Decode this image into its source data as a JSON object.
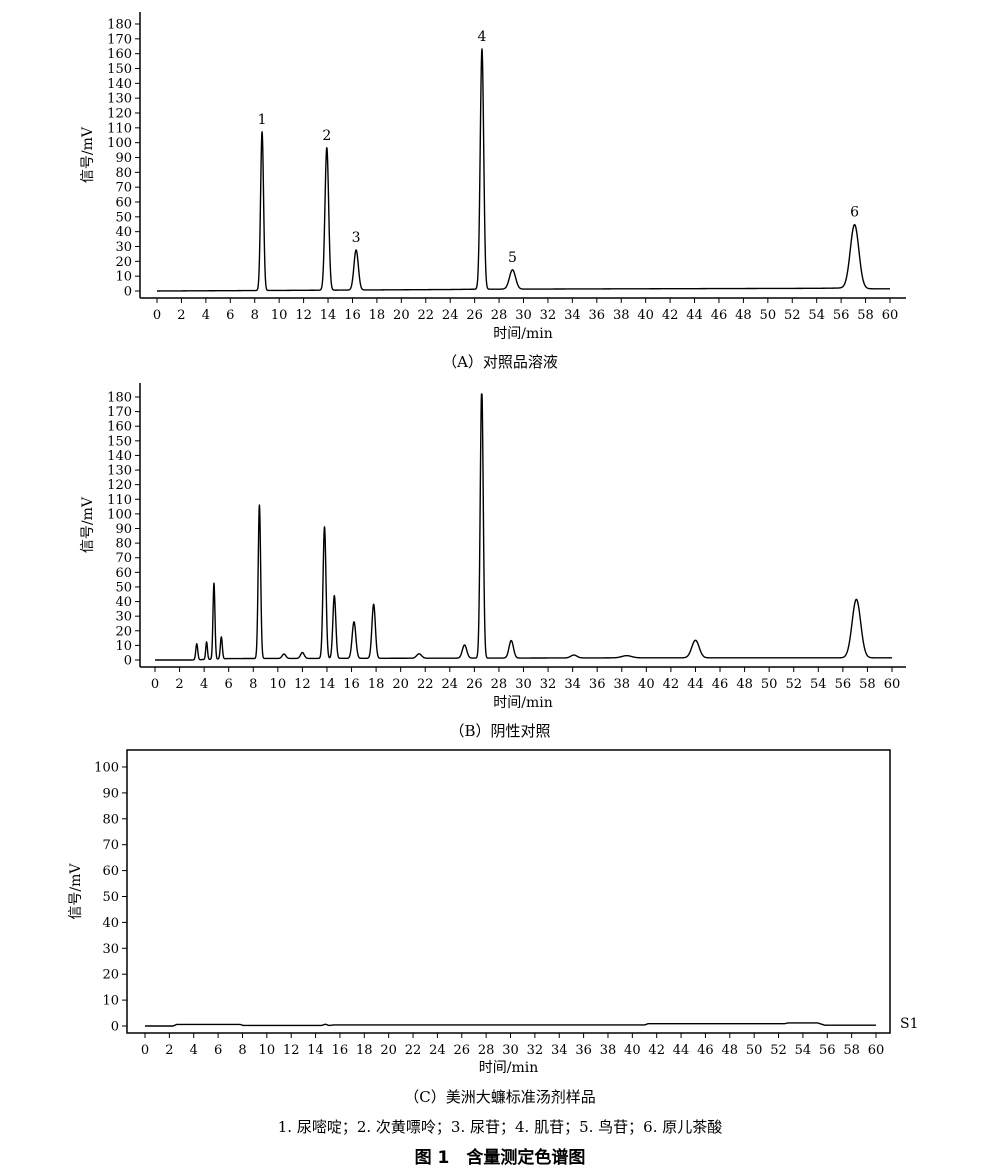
{
  "figure": {
    "legend_text": "1. 尿嘧啶；2. 次黄嘌呤；3. 尿苷；4. 肌苷；5. 鸟苷；6. 原儿茶酸",
    "title": "图 1　含量测定色谱图"
  },
  "chart_data": [
    {
      "type": "line",
      "caption": "（A）对照品溶液",
      "xlabel": "时间/min",
      "ylabel": "信号/mV",
      "xlim": [
        0,
        60
      ],
      "ylim": [
        0,
        180
      ],
      "x_ticks": [
        0,
        2,
        4,
        6,
        8,
        10,
        12,
        14,
        16,
        18,
        20,
        22,
        24,
        26,
        28,
        30,
        32,
        34,
        36,
        38,
        40,
        42,
        44,
        46,
        48,
        50,
        52,
        54,
        56,
        58,
        60
      ],
      "y_ticks": [
        0,
        10,
        20,
        30,
        40,
        50,
        60,
        70,
        80,
        90,
        100,
        110,
        120,
        130,
        140,
        150,
        160,
        170,
        180
      ],
      "grid": false,
      "baseline": [
        [
          0,
          0
        ],
        [
          8,
          0.3
        ],
        [
          24,
          1
        ],
        [
          26,
          1.2
        ],
        [
          40,
          1.5
        ],
        [
          54,
          1.8
        ],
        [
          56,
          2
        ],
        [
          58,
          1.5
        ],
        [
          60,
          1.5
        ]
      ],
      "peaks": [
        {
          "label": "1",
          "x": 8.6,
          "height": 107,
          "width": 0.12
        },
        {
          "label": "2",
          "x": 13.9,
          "height": 96,
          "width": 0.15
        },
        {
          "label": "3",
          "x": 16.3,
          "height": 27,
          "width": 0.18
        },
        {
          "label": "4",
          "x": 26.6,
          "height": 162,
          "width": 0.14
        },
        {
          "label": "5",
          "x": 29.1,
          "height": 13,
          "width": 0.25
        },
        {
          "label": "6",
          "x": 57.1,
          "height": 43,
          "width": 0.35
        }
      ]
    },
    {
      "type": "line",
      "caption": "（B）阴性对照",
      "xlabel": "时间/min",
      "ylabel": "信号/mV",
      "xlim": [
        0,
        60
      ],
      "ylim": [
        0,
        180
      ],
      "x_ticks": [
        0,
        2,
        4,
        6,
        8,
        10,
        12,
        14,
        16,
        18,
        20,
        22,
        24,
        26,
        28,
        30,
        32,
        34,
        36,
        38,
        40,
        42,
        44,
        46,
        48,
        50,
        52,
        54,
        56,
        58,
        60
      ],
      "y_ticks": [
        0,
        10,
        20,
        30,
        40,
        50,
        60,
        70,
        80,
        90,
        100,
        110,
        120,
        130,
        140,
        150,
        160,
        170,
        180
      ],
      "grid": false,
      "baseline": [
        [
          0,
          0
        ],
        [
          3,
          0
        ],
        [
          6,
          1
        ],
        [
          20,
          1.2
        ],
        [
          40,
          1.5
        ],
        [
          60,
          1.5
        ]
      ],
      "peaks": [
        {
          "x": 3.4,
          "height": 11,
          "width": 0.08
        },
        {
          "x": 4.2,
          "height": 12,
          "width": 0.07
        },
        {
          "x": 4.8,
          "height": 52,
          "width": 0.08
        },
        {
          "x": 5.4,
          "height": 15,
          "width": 0.08
        },
        {
          "x": 8.5,
          "height": 105,
          "width": 0.1
        },
        {
          "x": 10.5,
          "height": 3,
          "width": 0.15
        },
        {
          "x": 12.0,
          "height": 4,
          "width": 0.15
        },
        {
          "x": 13.8,
          "height": 90,
          "width": 0.12
        },
        {
          "x": 14.6,
          "height": 43,
          "width": 0.12
        },
        {
          "x": 16.2,
          "height": 25,
          "width": 0.15
        },
        {
          "x": 17.8,
          "height": 37,
          "width": 0.14
        },
        {
          "x": 21.5,
          "height": 3,
          "width": 0.2
        },
        {
          "x": 25.2,
          "height": 9,
          "width": 0.18
        },
        {
          "x": 26.6,
          "height": 186,
          "width": 0.12
        },
        {
          "x": 29.0,
          "height": 12,
          "width": 0.18
        },
        {
          "x": 34.1,
          "height": 2,
          "width": 0.25
        },
        {
          "x": 38.4,
          "height": 1.5,
          "width": 0.4
        },
        {
          "x": 44.0,
          "height": 12,
          "width": 0.3
        },
        {
          "x": 57.1,
          "height": 40,
          "width": 0.35
        }
      ]
    },
    {
      "type": "line",
      "caption": "（C）美洲大蠊标准汤剂样品",
      "xlabel": "时间/min",
      "ylabel": "信号/mV",
      "xlim": [
        0,
        60
      ],
      "ylim": [
        0,
        100
      ],
      "x_ticks": [
        0,
        2,
        4,
        6,
        8,
        10,
        12,
        14,
        16,
        18,
        20,
        22,
        24,
        26,
        28,
        30,
        32,
        34,
        36,
        38,
        40,
        42,
        44,
        46,
        48,
        50,
        52,
        54,
        56,
        58,
        60
      ],
      "y_ticks": [
        0,
        10,
        20,
        30,
        40,
        50,
        60,
        70,
        80,
        90,
        100
      ],
      "grid": false,
      "series_label": "S1",
      "baseline": [
        [
          0,
          0
        ],
        [
          2.3,
          0
        ],
        [
          2.6,
          0.6
        ],
        [
          7.8,
          0.6
        ],
        [
          8.1,
          0.2
        ],
        [
          14.5,
          0.2
        ],
        [
          14.8,
          0.7
        ],
        [
          15.1,
          0.2
        ],
        [
          15.5,
          0.4
        ],
        [
          41,
          0.4
        ],
        [
          41.3,
          0.9
        ],
        [
          52.5,
          0.9
        ],
        [
          52.8,
          1.2
        ],
        [
          55.2,
          1.2
        ],
        [
          55.8,
          0.3
        ],
        [
          60,
          0.3
        ]
      ],
      "peaks": []
    }
  ]
}
